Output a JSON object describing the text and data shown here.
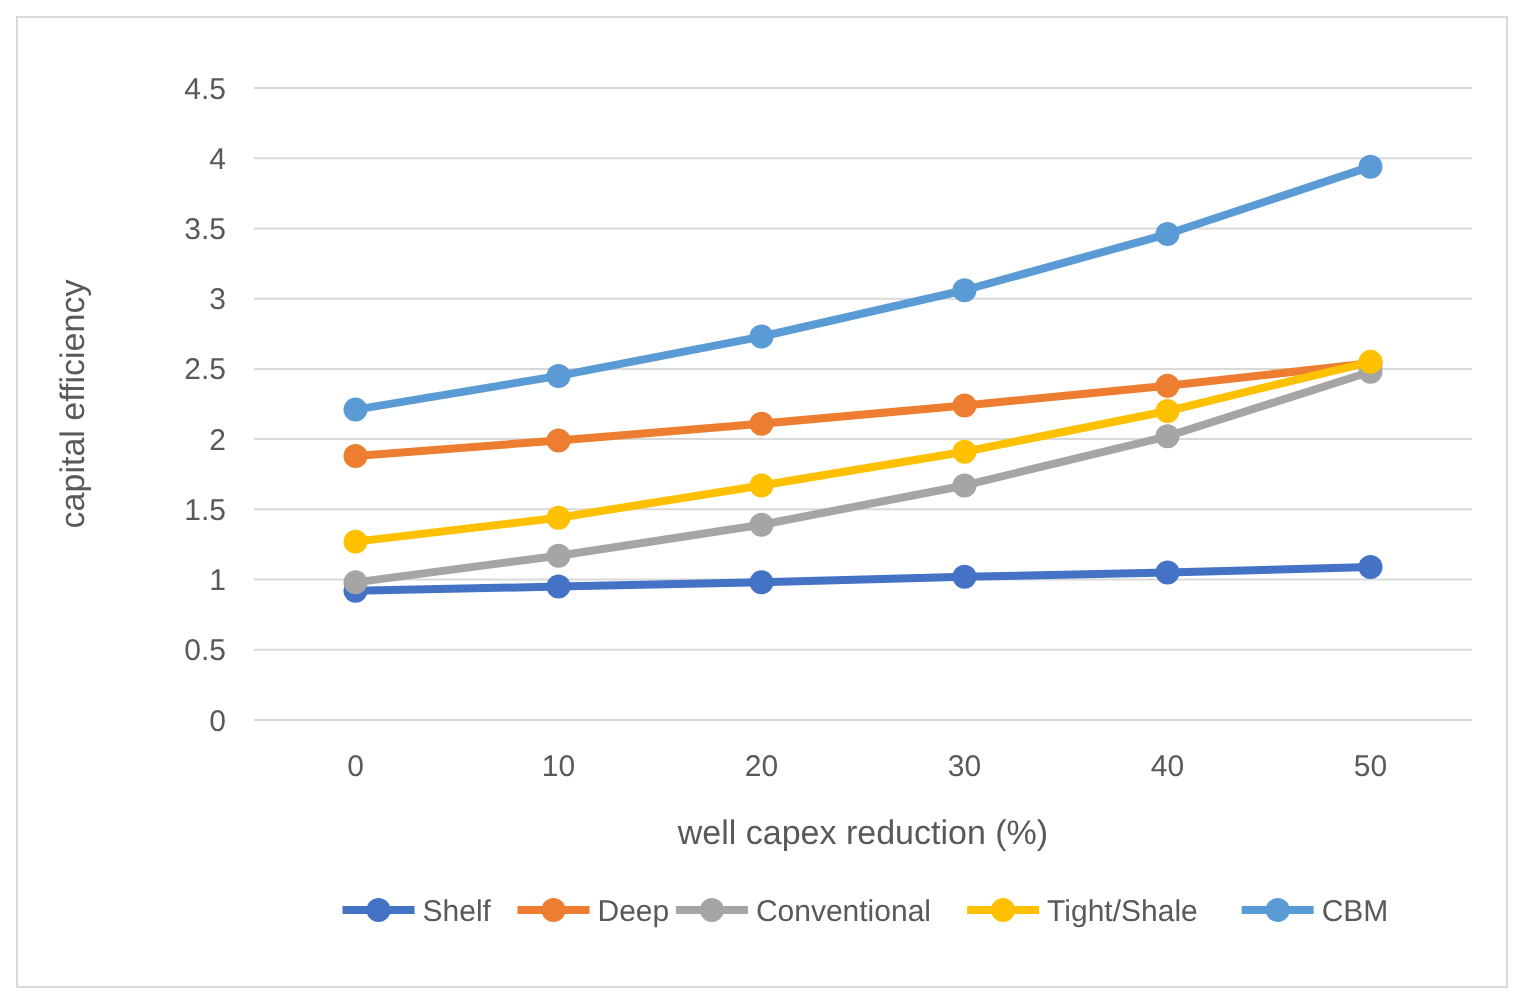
{
  "chart_data": {
    "type": "line",
    "xlabel": "well capex reduction (%)",
    "ylabel": "capital efficiency",
    "categories": [
      "0",
      "10",
      "20",
      "30",
      "40",
      "50"
    ],
    "ylim": [
      0,
      4.5
    ],
    "yticks": [
      0,
      0.5,
      1,
      1.5,
      2,
      2.5,
      3,
      3.5,
      4,
      4.5
    ],
    "grid": "y",
    "legend": "bottom",
    "marker": "circle",
    "line_style": "solid",
    "series": [
      {
        "name": "Shelf",
        "color": "#4472c4",
        "values": [
          0.92,
          0.95,
          0.98,
          1.02,
          1.05,
          1.09
        ]
      },
      {
        "name": "Deep",
        "color": "#ed7d31",
        "values": [
          1.88,
          1.99,
          2.11,
          2.24,
          2.38,
          2.54
        ]
      },
      {
        "name": "Conventional",
        "color": "#a5a5a5",
        "values": [
          0.98,
          1.17,
          1.39,
          1.67,
          2.02,
          2.48
        ]
      },
      {
        "name": "Tight/Shale",
        "color": "#ffc000",
        "values": [
          1.27,
          1.44,
          1.67,
          1.91,
          2.2,
          2.55
        ]
      },
      {
        "name": "CBM",
        "color": "#5b9bd5",
        "values": [
          2.21,
          2.45,
          2.73,
          3.06,
          3.46,
          3.94
        ]
      }
    ]
  }
}
